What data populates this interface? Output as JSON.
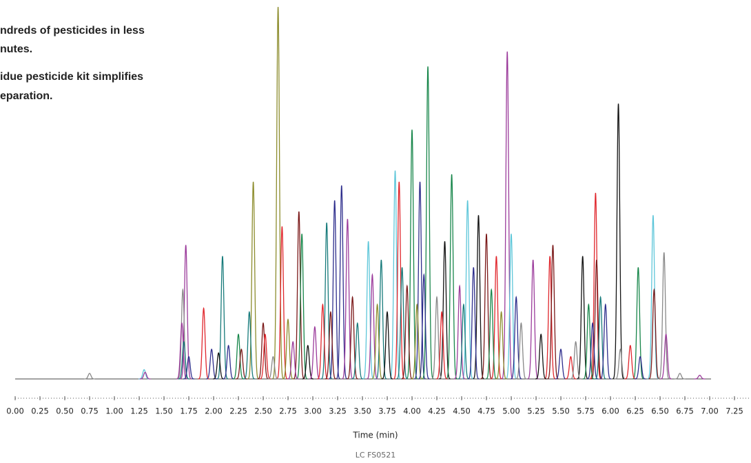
{
  "chart_data": {
    "type": "line",
    "annotations": [
      "ndreds of pesticides in less",
      "nutes.",
      "idue pesticide kit simplifies",
      "eparation."
    ],
    "xlabel": "Time (min)",
    "footer": "LC FS0521",
    "xlim": [
      0,
      7.25
    ],
    "ylim": [
      0,
      100
    ],
    "xticks": [
      {
        "value": 0,
        "label": "0.00"
      },
      {
        "value": 0.25,
        "label": "0.25"
      },
      {
        "value": 0.5,
        "label": "0.50"
      },
      {
        "value": 0.75,
        "label": "0.75"
      },
      {
        "value": 1,
        "label": "1.00"
      },
      {
        "value": 1.25,
        "label": "1.25"
      },
      {
        "value": 1.5,
        "label": "1.50"
      },
      {
        "value": 1.75,
        "label": "1.75"
      },
      {
        "value": 2,
        "label": "2.00"
      },
      {
        "value": 2.25,
        "label": "2.25"
      },
      {
        "value": 2.5,
        "label": "2.50"
      },
      {
        "value": 2.75,
        "label": "2.75"
      },
      {
        "value": 3,
        "label": "3.00"
      },
      {
        "value": 3.25,
        "label": "3.25"
      },
      {
        "value": 3.5,
        "label": "3.50"
      },
      {
        "value": 3.75,
        "label": "3.75"
      },
      {
        "value": 4,
        "label": "4.00"
      },
      {
        "value": 4.25,
        "label": "4.25"
      },
      {
        "value": 4.5,
        "label": "4.50"
      },
      {
        "value": 4.75,
        "label": "4.75"
      },
      {
        "value": 5,
        "label": "5.00"
      },
      {
        "value": 5.25,
        "label": "5.25"
      },
      {
        "value": 5.5,
        "label": "5.50"
      },
      {
        "value": 5.75,
        "label": "5.75"
      },
      {
        "value": 6,
        "label": "6.00"
      },
      {
        "value": 6.25,
        "label": "6.25"
      },
      {
        "value": 6.5,
        "label": "6.50"
      },
      {
        "value": 6.75,
        "label": "6.75"
      },
      {
        "value": 7,
        "label": "7.00"
      },
      {
        "value": 7.25,
        "label": "7.25"
      }
    ],
    "peak_times": [
      1.72,
      1.69,
      1.9,
      2.09,
      2.4,
      2.65,
      2.69,
      2.86,
      2.89,
      3.14,
      3.22,
      3.29,
      3.35,
      3.56,
      3.69,
      3.83,
      3.87,
      4.0,
      4.08,
      4.16,
      4.33,
      4.4,
      4.56,
      4.67,
      4.75,
      4.85,
      4.96,
      5.0,
      5.22,
      5.39,
      5.42,
      5.72,
      5.85,
      5.86,
      6.08,
      6.28,
      6.43,
      6.44,
      6.54,
      0.75,
      1.3,
      1.31,
      1.68,
      1.7,
      1.75,
      1.98,
      2.05,
      2.15,
      2.25,
      2.28,
      2.36,
      2.5,
      2.52,
      2.6,
      2.75,
      2.8,
      2.95,
      3.02,
      3.1,
      3.18,
      3.4,
      3.45,
      3.6,
      3.65,
      3.75,
      3.9,
      3.95,
      4.05,
      4.12,
      4.25,
      4.3,
      4.48,
      4.52,
      4.62,
      4.8,
      4.9,
      5.05,
      5.1,
      5.3,
      5.5,
      5.6,
      5.65,
      5.78,
      5.82,
      5.9,
      5.95,
      6.1,
      6.2,
      6.3,
      6.56,
      6.7,
      6.9
    ],
    "peak_heights": [
      36,
      24,
      19,
      33,
      53,
      100,
      41,
      45,
      39,
      42,
      48,
      52,
      43,
      37,
      32,
      56,
      53,
      67,
      53,
      84,
      37,
      55,
      48,
      44,
      39,
      33,
      88,
      39,
      32,
      33,
      36,
      33,
      50,
      32,
      74,
      30,
      44,
      24,
      34,
      1.5,
      2.5,
      1.8,
      15,
      10,
      6,
      8,
      7,
      9,
      12,
      8,
      18,
      15,
      12,
      6,
      16,
      10,
      9,
      14,
      20,
      18,
      22,
      15,
      28,
      20,
      18,
      30,
      25,
      20,
      28,
      22,
      18,
      25,
      20,
      30,
      24,
      18,
      22,
      15,
      12,
      8,
      6,
      10,
      20,
      15,
      22,
      20,
      8,
      9,
      6,
      12,
      1.5,
      1
    ],
    "peak_colors": [
      "#9b3b9b",
      "#888888",
      "#e0252b",
      "#167a7a",
      "#8c8c2c",
      "#8c8c2c",
      "#e0252b",
      "#7a1818",
      "#17864a",
      "#167a7a",
      "#2d2d8c",
      "#2d2d8c",
      "#9b3b9b",
      "#5dc6d9",
      "#167a7a",
      "#5dc6d9",
      "#e0252b",
      "#17864a",
      "#2d2d8c",
      "#17864a",
      "#111111",
      "#17864a",
      "#5dc6d9",
      "#111111",
      "#7a1818",
      "#e0252b",
      "#9b3b9b",
      "#5dc6d9",
      "#9b3b9b",
      "#e0252b",
      "#7a1818",
      "#111111",
      "#e0252b",
      "#7a1818",
      "#111111",
      "#17864a",
      "#5dc6d9",
      "#7a1818",
      "#888888",
      "#888888",
      "#5dc6d9",
      "#9b3b9b",
      "#9b3b9b",
      "#167a7a",
      "#2d2d8c",
      "#2d2d8c",
      "#111111",
      "#2d2d8c",
      "#17864a",
      "#7a1818",
      "#167a7a",
      "#7a1818",
      "#e0252b",
      "#888888",
      "#8c8c2c",
      "#9b3b9b",
      "#111111",
      "#9b3b9b",
      "#e0252b",
      "#7a1818",
      "#7a1818",
      "#167a7a",
      "#9b3b9b",
      "#8c8c2c",
      "#111111",
      "#167a7a",
      "#7a1818",
      "#8c8c2c",
      "#2d2d8c",
      "#888888",
      "#e0252b",
      "#9b3b9b",
      "#167a7a",
      "#2d2d8c",
      "#17864a",
      "#8c8c2c",
      "#2d2d8c",
      "#888888",
      "#111111",
      "#2d2d8c",
      "#e0252b",
      "#888888",
      "#17864a",
      "#2d2d8c",
      "#167a7a",
      "#2d2d8c",
      "#888888",
      "#e0252b",
      "#2d2d8c",
      "#9b3b9b",
      "#888888",
      "#9b3b9b"
    ]
  }
}
